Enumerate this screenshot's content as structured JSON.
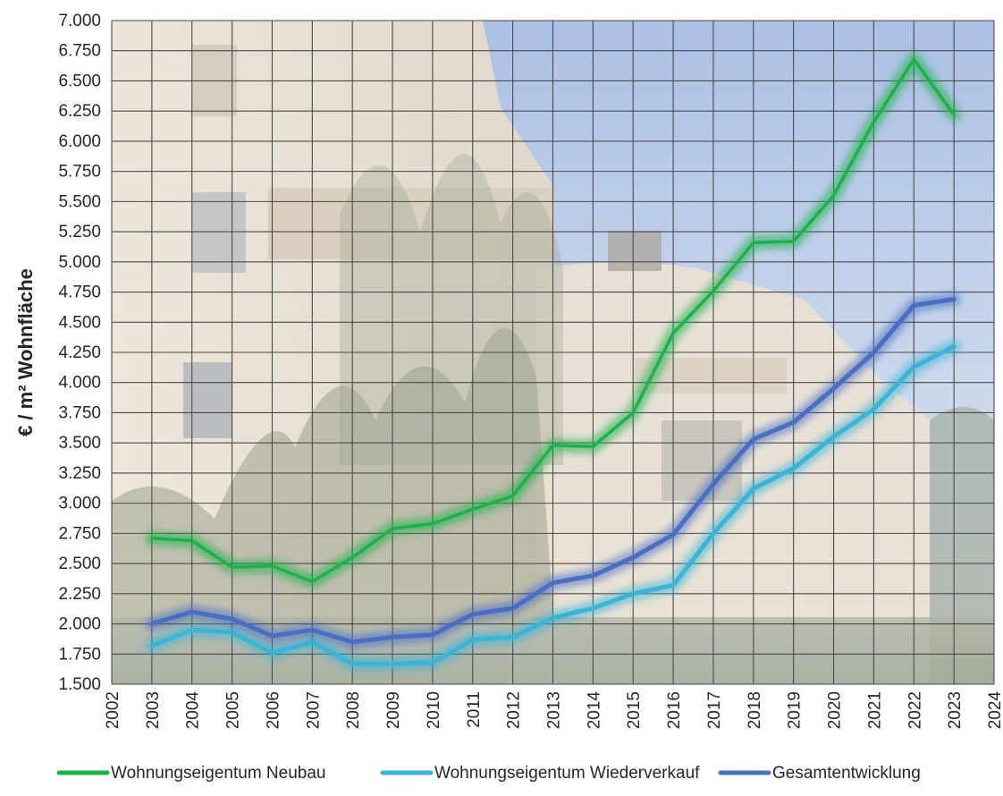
{
  "chart_data": {
    "type": "line",
    "title": "",
    "xlabel": "",
    "ylabel": "€ / m² Wohnfläche",
    "xlim": [
      2002,
      2024
    ],
    "ylim": [
      1500,
      7000
    ],
    "y_ticks": [
      "1.500",
      "1.750",
      "2.000",
      "2.250",
      "2.500",
      "2.750",
      "3.000",
      "3.250",
      "3.500",
      "3.750",
      "4.000",
      "4.250",
      "4.500",
      "4.750",
      "5.000",
      "5.250",
      "5.500",
      "5.750",
      "6.000",
      "6.250",
      "6.500",
      "6.750",
      "7.000"
    ],
    "x_ticks": [
      "2002",
      "2003",
      "2004",
      "2005",
      "2006",
      "2007",
      "2008",
      "2009",
      "2010",
      "2011",
      "2012",
      "2013",
      "2014",
      "2015",
      "2016",
      "2017",
      "2018",
      "2019",
      "2020",
      "2021",
      "2022",
      "2023",
      "2024"
    ],
    "x": [
      2003,
      2004,
      2005,
      2006,
      2007,
      2008,
      2009,
      2010,
      2011,
      2012,
      2013,
      2014,
      2015,
      2016,
      2017,
      2018,
      2019,
      2020,
      2021,
      2022,
      2023
    ],
    "grid": true,
    "legend_position": "bottom",
    "series": [
      {
        "name": "Wohnungseigentum Neubau",
        "color": "#1db14b",
        "values": [
          2710,
          2690,
          2470,
          2480,
          2350,
          2550,
          2790,
          2830,
          2950,
          3060,
          3480,
          3470,
          3750,
          4410,
          4760,
          5160,
          5170,
          5550,
          6160,
          6680,
          6220
        ]
      },
      {
        "name": "Wohnungseigentum Wiederverkauf",
        "color": "#3bb4d6",
        "values": [
          1820,
          1950,
          1930,
          1760,
          1850,
          1670,
          1670,
          1680,
          1870,
          1890,
          2050,
          2130,
          2250,
          2320,
          2750,
          3120,
          3290,
          3550,
          3780,
          4130,
          4300
        ]
      },
      {
        "name": "Gesamtentwicklung",
        "color": "#4a6fc2",
        "values": [
          2000,
          2100,
          2040,
          1900,
          1950,
          1850,
          1890,
          1910,
          2080,
          2130,
          2340,
          2400,
          2550,
          2740,
          3160,
          3530,
          3670,
          3950,
          4250,
          4640,
          4690
        ]
      }
    ]
  },
  "background": {
    "photo_subject": "apartment-building-photo",
    "sky_color": "#a9c0e4",
    "facade_color": "#e7dccb",
    "foliage_color": "#8c9179"
  }
}
